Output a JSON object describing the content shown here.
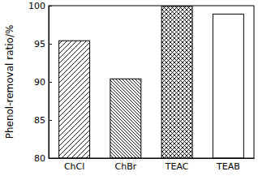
{
  "chart_data": {
    "type": "bar",
    "y_label": "Phenol-removal ratio/%",
    "categories": [
      "ChCl",
      "ChBr",
      "TEAC",
      "TEAB"
    ],
    "values": [
      95.4,
      90.4,
      99.9,
      98.9
    ],
    "color": "#ffffff",
    "ylim": [
      80,
      100
    ],
    "yticks": [
      80,
      85,
      90,
      95,
      100
    ],
    "grid": false
  }
}
